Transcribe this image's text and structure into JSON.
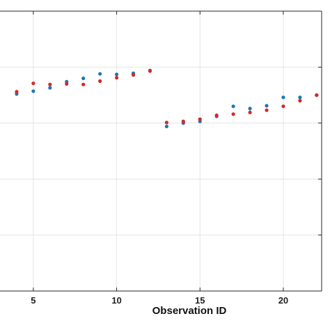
{
  "chart_data": {
    "type": "scatter",
    "title": "",
    "xlabel": "Observation ID",
    "ylabel": "",
    "xlim": [
      3,
      22.3
    ],
    "ylim": [
      0,
      5
    ],
    "x_ticks": [
      5,
      10,
      15,
      20
    ],
    "y_gridlines": [
      1,
      2,
      3,
      4
    ],
    "grid": true,
    "legend": "none",
    "series": [
      {
        "color": "#1f77b4",
        "x": [
          4,
          5,
          6,
          7,
          8,
          9,
          10,
          11,
          12,
          13,
          14,
          15,
          16,
          17,
          18,
          19,
          20,
          21,
          22
        ],
        "y": [
          3.52,
          3.57,
          3.63,
          3.74,
          3.8,
          3.88,
          3.87,
          3.89,
          3.94,
          2.94,
          3.0,
          3.03,
          3.12,
          3.3,
          3.26,
          3.31,
          3.46,
          3.46,
          3.5
        ]
      },
      {
        "color": "#d62728",
        "x": [
          4,
          5,
          6,
          7,
          8,
          9,
          10,
          11,
          12,
          13,
          14,
          15,
          16,
          17,
          18,
          19,
          20,
          21,
          22
        ],
        "y": [
          3.56,
          3.71,
          3.69,
          3.7,
          3.69,
          3.75,
          3.81,
          3.86,
          3.93,
          3.01,
          3.03,
          3.07,
          3.14,
          3.16,
          3.19,
          3.23,
          3.3,
          3.4,
          3.5
        ]
      }
    ]
  }
}
